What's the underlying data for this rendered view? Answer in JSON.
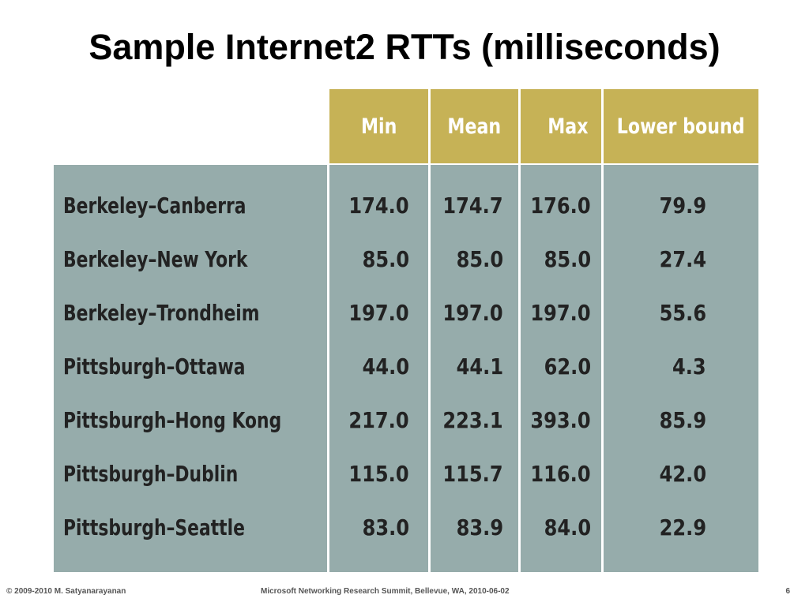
{
  "title": "Sample Internet2 RTTs (milliseconds)",
  "table": {
    "columns": [
      "Min",
      "Mean",
      "Max",
      "Lower bound"
    ],
    "rows": [
      {
        "label": "Berkeley–Canberra",
        "min": "174.0",
        "mean": "174.7",
        "max": "176.0",
        "lower": "79.9"
      },
      {
        "label": "Berkeley–New York",
        "min": "85.0",
        "mean": "85.0",
        "max": "85.0",
        "lower": "27.4"
      },
      {
        "label": "Berkeley–Trondheim",
        "min": "197.0",
        "mean": "197.0",
        "max": "197.0",
        "lower": "55.6"
      },
      {
        "label": "Pittsburgh–Ottawa",
        "min": "44.0",
        "mean": "44.1",
        "max": "62.0",
        "lower": "4.3"
      },
      {
        "label": "Pittsburgh–Hong Kong",
        "min": "217.0",
        "mean": "223.1",
        "max": "393.0",
        "lower": "85.9"
      },
      {
        "label": "Pittsburgh–Dublin",
        "min": "115.0",
        "mean": "115.7",
        "max": "116.0",
        "lower": "42.0"
      },
      {
        "label": "Pittsburgh–Seattle",
        "min": "83.0",
        "mean": "83.9",
        "max": "84.0",
        "lower": "22.9"
      }
    ]
  },
  "footer": {
    "left": "© 2009-2010  M. Satyanarayanan",
    "center": "Microsoft Networking Research Summit, Bellevue, WA,  2010-06-02",
    "page": "6"
  },
  "colors": {
    "header_fill": "#c6b256",
    "body_fill": "#96acab",
    "header_text": "#ffffff",
    "body_text": "#222222"
  }
}
